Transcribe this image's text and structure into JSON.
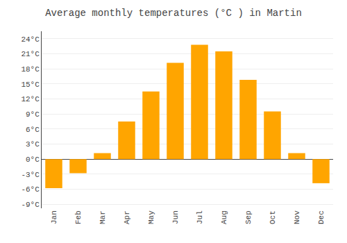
{
  "chart_data": {
    "type": "bar",
    "title": "Average monthly temperatures (°C ) in Martin",
    "categories": [
      "Jan",
      "Feb",
      "Mar",
      "Apr",
      "May",
      "Jun",
      "Jul",
      "Aug",
      "Sep",
      "Oct",
      "Nov",
      "Dec"
    ],
    "values": [
      -5.8,
      -2.8,
      1.2,
      7.5,
      13.5,
      19.2,
      22.8,
      21.5,
      15.8,
      9.5,
      1.2,
      -4.8
    ],
    "color": "#FFA500",
    "ylim": [
      -9.8,
      25.5
    ],
    "yticks": [
      {
        "value": -9,
        "label": "-9°C"
      },
      {
        "value": -6,
        "label": "-6°C"
      },
      {
        "value": -3,
        "label": "-3°C"
      },
      {
        "value": 0,
        "label": "0°C"
      },
      {
        "value": 3,
        "label": "3°C"
      },
      {
        "value": 6,
        "label": "6°C"
      },
      {
        "value": 9,
        "label": "9°C"
      },
      {
        "value": 12,
        "label": "12°C"
      },
      {
        "value": 15,
        "label": "15°C"
      },
      {
        "value": 18,
        "label": "18°C"
      },
      {
        "value": 21,
        "label": "21°C"
      },
      {
        "value": 24,
        "label": "24°C"
      }
    ],
    "grid": true
  }
}
